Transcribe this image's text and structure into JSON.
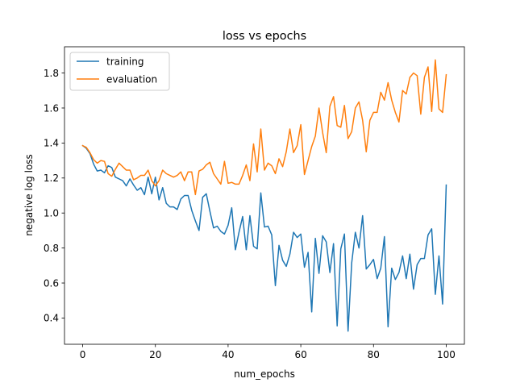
{
  "chart_data": {
    "type": "line",
    "title": "loss vs epochs",
    "xlabel": "num_epochs",
    "ylabel": "negative log loss",
    "xlim": [
      -5,
      105
    ],
    "ylim": [
      0.25,
      1.95
    ],
    "xticks": [
      0,
      20,
      40,
      60,
      80,
      100
    ],
    "yticks": [
      0.4,
      0.6,
      0.8,
      1.0,
      1.2,
      1.4,
      1.6,
      1.8
    ],
    "grid": false,
    "legend": "upper-left",
    "series": [
      {
        "name": "training",
        "color": "#1f77b4",
        "values": [
          1.385,
          1.37,
          1.34,
          1.28,
          1.24,
          1.245,
          1.23,
          1.27,
          1.26,
          1.205,
          1.195,
          1.185,
          1.155,
          1.195,
          1.16,
          1.13,
          1.145,
          1.105,
          1.205,
          1.11,
          1.205,
          1.075,
          1.145,
          1.055,
          1.035,
          1.035,
          1.02,
          1.08,
          1.1,
          1.1,
          1.015,
          0.955,
          0.9,
          1.09,
          1.11,
          1.01,
          0.915,
          0.925,
          0.895,
          0.88,
          0.93,
          1.03,
          0.79,
          0.89,
          0.98,
          0.79,
          0.985,
          0.81,
          0.795,
          1.115,
          0.92,
          0.925,
          0.875,
          0.585,
          0.815,
          0.73,
          0.695,
          0.765,
          0.89,
          0.86,
          0.88,
          0.69,
          0.775,
          0.435,
          0.855,
          0.655,
          0.87,
          0.835,
          0.66,
          0.825,
          0.355,
          0.795,
          0.88,
          0.325,
          0.715,
          0.89,
          0.8,
          0.985,
          0.68,
          0.705,
          0.735,
          0.625,
          0.685,
          0.865,
          0.35,
          0.685,
          0.62,
          0.66,
          0.755,
          0.625,
          0.765,
          0.565,
          0.705,
          0.74,
          0.74,
          0.875,
          0.91,
          0.535,
          0.755,
          0.48,
          1.16
        ]
      },
      {
        "name": "evaluation",
        "color": "#ff7f0e",
        "values": [
          1.385,
          1.375,
          1.345,
          1.305,
          1.285,
          1.3,
          1.295,
          1.225,
          1.21,
          1.25,
          1.285,
          1.265,
          1.245,
          1.245,
          1.19,
          1.2,
          1.215,
          1.215,
          1.245,
          1.185,
          1.155,
          1.185,
          1.245,
          1.225,
          1.215,
          1.205,
          1.215,
          1.235,
          1.185,
          1.235,
          1.235,
          1.105,
          1.24,
          1.25,
          1.275,
          1.29,
          1.225,
          1.195,
          1.165,
          1.295,
          1.17,
          1.175,
          1.165,
          1.165,
          1.215,
          1.275,
          1.185,
          1.395,
          1.235,
          1.48,
          1.245,
          1.285,
          1.27,
          1.225,
          1.31,
          1.265,
          1.35,
          1.48,
          1.345,
          1.385,
          1.505,
          1.22,
          1.3,
          1.38,
          1.44,
          1.6,
          1.46,
          1.345,
          1.61,
          1.665,
          1.5,
          1.49,
          1.615,
          1.425,
          1.465,
          1.6,
          1.635,
          1.53,
          1.35,
          1.53,
          1.575,
          1.575,
          1.69,
          1.645,
          1.745,
          1.645,
          1.575,
          1.52,
          1.7,
          1.68,
          1.775,
          1.8,
          1.785,
          1.565,
          1.775,
          1.835,
          1.58,
          1.875,
          1.595,
          1.575,
          1.79
        ]
      }
    ]
  }
}
